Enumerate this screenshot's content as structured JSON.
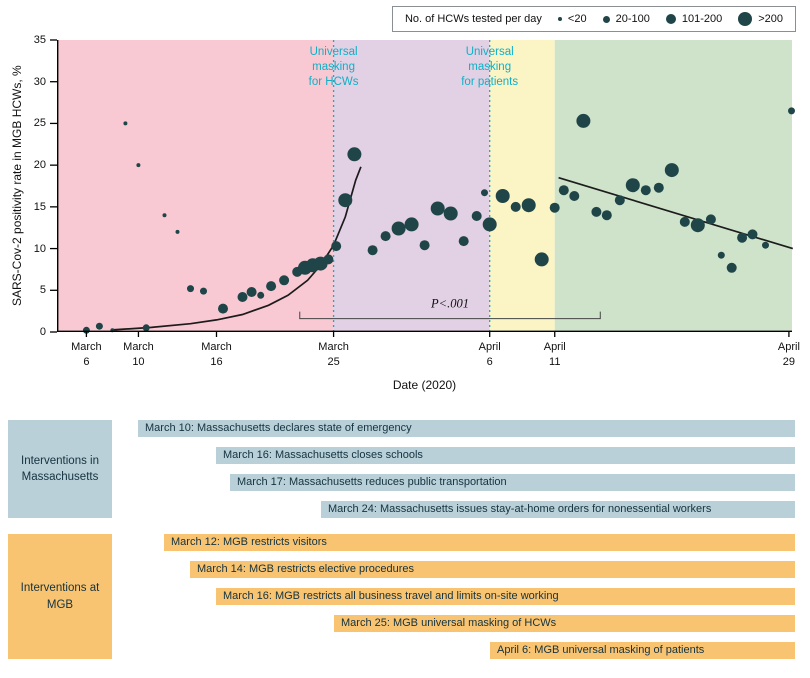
{
  "legend": {
    "title": "No. of HCWs tested per day",
    "items": [
      {
        "label": "<20",
        "diameter": 4
      },
      {
        "label": "20-100",
        "diameter": 7
      },
      {
        "label": "101-200",
        "diameter": 10
      },
      {
        "label": ">200",
        "diameter": 14
      }
    ]
  },
  "chart_data": {
    "type": "scatter",
    "xlabel": "Date (2020)",
    "ylabel": "SARS-Cov-2 positivity rate in MGB HCWs, %",
    "ylim": [
      0,
      35
    ],
    "y_ticks": [
      0,
      5,
      10,
      15,
      20,
      25,
      30,
      35
    ],
    "x_ticks": [
      {
        "line1": "March",
        "line2": "6",
        "d": 0
      },
      {
        "line1": "March",
        "line2": "10",
        "d": 4
      },
      {
        "line1": "March",
        "line2": "16",
        "d": 10
      },
      {
        "line1": "March",
        "line2": "25",
        "d": 19
      },
      {
        "line1": "April",
        "line2": "6",
        "d": 31
      },
      {
        "line1": "April",
        "line2": "11",
        "d": 36
      },
      {
        "line1": "April",
        "line2": "29",
        "d": 54
      }
    ],
    "regions": [
      {
        "name": "pre-universal-masking",
        "color": "#f8c9d2",
        "end_d": 19
      },
      {
        "name": "universal-masking-hcws",
        "color": "#e2d0e4",
        "start_d": 19,
        "end_d": 31
      },
      {
        "name": "universal-masking-patients",
        "color": "#fbf4c5",
        "start_d": 31,
        "end_d": 36
      },
      {
        "name": "post-interventions",
        "color": "#cfe2ca",
        "start_d": 36
      }
    ],
    "masking_lines": [
      {
        "d": 19,
        "label": "Universal\nmasking\nfor HCWs"
      },
      {
        "d": 31,
        "label": "Universal\nmasking\nfor patients"
      }
    ],
    "size_radius": {
      "<20": 2,
      "20-100": 3.5,
      "101-200": 5,
      ">200": 7
    },
    "colors": {
      "point": "#1f4548",
      "trend": "#1c1c1c",
      "masking": "#0fb0c6",
      "bracket": "#444444",
      "axis": "#000000"
    },
    "p_annotation": {
      "label": "P<.001",
      "start_d": 16.4,
      "end_d": 39.5,
      "y_value": 1.6
    },
    "trend_curves": [
      {
        "name": "exponential-rise",
        "points": [
          [
            2,
            0.25
          ],
          [
            5,
            0.55
          ],
          [
            8,
            1.0
          ],
          [
            10,
            1.45
          ],
          [
            12,
            2.1
          ],
          [
            14,
            3.2
          ],
          [
            15.5,
            4.4
          ],
          [
            17,
            6.2
          ],
          [
            18,
            8.0
          ],
          [
            19,
            10.4
          ],
          [
            19.9,
            13.8
          ],
          [
            20.7,
            18.2
          ],
          [
            21.1,
            19.8
          ]
        ]
      },
      {
        "name": "linear-decline",
        "points": [
          [
            36.3,
            18.5
          ],
          [
            54.3,
            10.0
          ]
        ]
      }
    ],
    "points_note": "d = days after March 6, 2020; value = % positivity; size = no. of HCWs tested per day",
    "points": [
      {
        "d": 0,
        "value": 0.2,
        "size": "20-100"
      },
      {
        "d": 1,
        "value": 0.7,
        "size": "20-100"
      },
      {
        "d": 2,
        "value": 0.2,
        "size": "<20"
      },
      {
        "d": 3,
        "value": 25.0,
        "size": "<20"
      },
      {
        "d": 4,
        "value": 20.0,
        "size": "<20"
      },
      {
        "d": 4.6,
        "value": 0.5,
        "size": "20-100"
      },
      {
        "d": 6,
        "value": 14.0,
        "size": "<20"
      },
      {
        "d": 7,
        "value": 12.0,
        "size": "<20"
      },
      {
        "d": 8,
        "value": 5.2,
        "size": "20-100"
      },
      {
        "d": 9,
        "value": 4.9,
        "size": "20-100"
      },
      {
        "d": 10.5,
        "value": 2.8,
        "size": "101-200"
      },
      {
        "d": 12,
        "value": 4.2,
        "size": "101-200"
      },
      {
        "d": 12.7,
        "value": 4.8,
        "size": "101-200"
      },
      {
        "d": 13.4,
        "value": 4.4,
        "size": "20-100"
      },
      {
        "d": 14.2,
        "value": 5.5,
        "size": "101-200"
      },
      {
        "d": 15.2,
        "value": 6.2,
        "size": "101-200"
      },
      {
        "d": 16.2,
        "value": 7.2,
        "size": "101-200"
      },
      {
        "d": 16.8,
        "value": 7.7,
        "size": ">200"
      },
      {
        "d": 17.4,
        "value": 8.0,
        "size": ">200"
      },
      {
        "d": 18.0,
        "value": 8.2,
        "size": ">200"
      },
      {
        "d": 18.6,
        "value": 8.7,
        "size": "101-200"
      },
      {
        "d": 19.2,
        "value": 10.3,
        "size": "101-200"
      },
      {
        "d": 19.9,
        "value": 15.8,
        "size": ">200"
      },
      {
        "d": 20.6,
        "value": 21.3,
        "size": ">200"
      },
      {
        "d": 22,
        "value": 9.8,
        "size": "101-200"
      },
      {
        "d": 23,
        "value": 11.5,
        "size": "101-200"
      },
      {
        "d": 24,
        "value": 12.4,
        "size": ">200"
      },
      {
        "d": 25,
        "value": 12.9,
        "size": ">200"
      },
      {
        "d": 26,
        "value": 10.4,
        "size": "101-200"
      },
      {
        "d": 27,
        "value": 14.8,
        "size": ">200"
      },
      {
        "d": 28,
        "value": 14.2,
        "size": ">200"
      },
      {
        "d": 29,
        "value": 10.9,
        "size": "101-200"
      },
      {
        "d": 30,
        "value": 13.9,
        "size": "101-200"
      },
      {
        "d": 30.6,
        "value": 16.7,
        "size": "20-100"
      },
      {
        "d": 31,
        "value": 12.9,
        "size": ">200"
      },
      {
        "d": 32,
        "value": 16.3,
        "size": ">200"
      },
      {
        "d": 33,
        "value": 15.0,
        "size": "101-200"
      },
      {
        "d": 34,
        "value": 15.2,
        "size": ">200"
      },
      {
        "d": 35,
        "value": 8.7,
        "size": ">200"
      },
      {
        "d": 36,
        "value": 14.9,
        "size": "101-200"
      },
      {
        "d": 36.7,
        "value": 17.0,
        "size": "101-200"
      },
      {
        "d": 37.5,
        "value": 16.3,
        "size": "101-200"
      },
      {
        "d": 38.2,
        "value": 25.3,
        "size": ">200"
      },
      {
        "d": 39.2,
        "value": 14.4,
        "size": "101-200"
      },
      {
        "d": 40,
        "value": 14.0,
        "size": "101-200"
      },
      {
        "d": 41,
        "value": 15.8,
        "size": "101-200"
      },
      {
        "d": 42,
        "value": 17.6,
        "size": ">200"
      },
      {
        "d": 43,
        "value": 17.0,
        "size": "101-200"
      },
      {
        "d": 44,
        "value": 17.3,
        "size": "101-200"
      },
      {
        "d": 45,
        "value": 19.4,
        "size": ">200"
      },
      {
        "d": 46,
        "value": 13.2,
        "size": "101-200"
      },
      {
        "d": 47,
        "value": 12.8,
        "size": ">200"
      },
      {
        "d": 48,
        "value": 13.5,
        "size": "101-200"
      },
      {
        "d": 48.8,
        "value": 9.2,
        "size": "20-100"
      },
      {
        "d": 49.6,
        "value": 7.7,
        "size": "101-200"
      },
      {
        "d": 50.4,
        "value": 11.3,
        "size": "101-200"
      },
      {
        "d": 51.2,
        "value": 11.7,
        "size": "101-200"
      },
      {
        "d": 52.2,
        "value": 10.4,
        "size": "20-100"
      },
      {
        "d": 54.2,
        "value": 26.5,
        "size": "20-100"
      }
    ]
  },
  "timeline": {
    "groups": [
      {
        "label": "Interventions in Massachusetts",
        "color": "#b9d0d8",
        "bars": [
          {
            "text": "March 10: Massachusetts declares state of emergency",
            "d": 4
          },
          {
            "text": "March 16: Massachusetts closes schools",
            "d": 10
          },
          {
            "text": "March 17: Massachusetts reduces public transportation",
            "d": 11
          },
          {
            "text": "March 24: Massachusetts issues stay-at-home orders for nonessential workers",
            "d": 18
          }
        ]
      },
      {
        "label": "Interventions at MGB",
        "color": "#f9c471",
        "bars": [
          {
            "text": "March 12: MGB restricts visitors",
            "d": 6
          },
          {
            "text": "March 14: MGB restricts elective procedures",
            "d": 8
          },
          {
            "text": "March 16: MGB restricts all business travel and limits on-site working",
            "d": 10
          },
          {
            "text": "March 25: MGB universal masking of HCWs",
            "d": 19
          },
          {
            "text": "April 6: MGB universal masking of patients",
            "d": 31
          }
        ]
      }
    ]
  }
}
